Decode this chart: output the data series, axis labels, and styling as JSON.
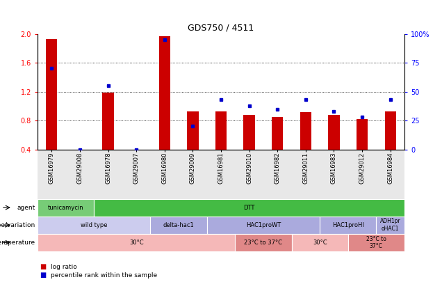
{
  "title": "GDS750 / 4511",
  "samples": [
    "GSM16979",
    "GSM29008",
    "GSM16978",
    "GSM29007",
    "GSM16980",
    "GSM29009",
    "GSM16981",
    "GSM29010",
    "GSM16982",
    "GSM29011",
    "GSM16983",
    "GSM29012",
    "GSM16984"
  ],
  "log_ratio": [
    1.93,
    0.4,
    1.19,
    0.4,
    1.97,
    0.93,
    0.93,
    0.88,
    0.85,
    0.92,
    0.88,
    0.82,
    0.93
  ],
  "percentile_rank": [
    70,
    0,
    55,
    0,
    95,
    20,
    43,
    38,
    35,
    43,
    33,
    28,
    43
  ],
  "ymin": 0.4,
  "ymax": 2.0,
  "yticks": [
    0.4,
    0.8,
    1.2,
    1.6,
    2.0
  ],
  "y2min": 0,
  "y2max": 100,
  "y2ticks": [
    0,
    25,
    50,
    75,
    100
  ],
  "bar_color": "#cc0000",
  "square_color": "#0000cc",
  "bar_width": 0.4,
  "agent_spans": [
    [
      0,
      2,
      "tunicamycin",
      "#77cc77"
    ],
    [
      2,
      13,
      "DTT",
      "#44bb44"
    ]
  ],
  "genotype_spans": [
    [
      0,
      4,
      "wild type",
      "#ccccee"
    ],
    [
      4,
      6,
      "delta-hac1",
      "#aaaadd"
    ],
    [
      6,
      10,
      "HAC1proWT",
      "#aaaadd"
    ],
    [
      10,
      12,
      "HAC1proHI",
      "#aaaadd"
    ],
    [
      12,
      13,
      "ADH1pr\noHAC1",
      "#aaaadd"
    ]
  ],
  "temp_spans": [
    [
      0,
      7,
      "30°C",
      "#f5b8b8"
    ],
    [
      7,
      9,
      "23°C to 37°C",
      "#e08888"
    ],
    [
      9,
      11,
      "30°C",
      "#f5b8b8"
    ],
    [
      11,
      13,
      "23°C to\n37°C",
      "#e08888"
    ]
  ],
  "row_labels": [
    "agent",
    "genotype/variation",
    "temperature"
  ],
  "legend_red": "#cc0000",
  "legend_blue": "#0000cc"
}
